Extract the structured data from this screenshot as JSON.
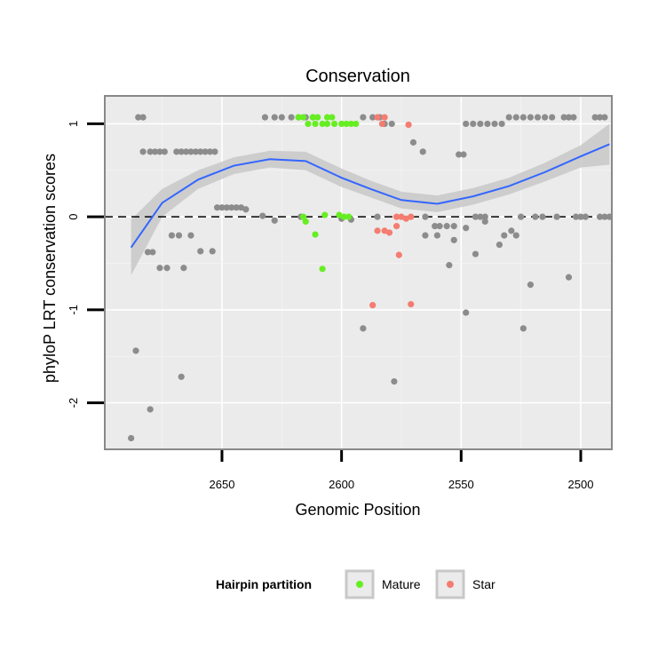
{
  "chart_data": {
    "type": "scatter",
    "title": "Conservation",
    "xlabel": "Genomic Position",
    "ylabel": "phyloP LRT conservation scores",
    "xlim": [
      2699,
      2487
    ],
    "ylim": [
      -2.5,
      1.3
    ],
    "x_reversed": true,
    "xticks": [
      2650,
      2600,
      2550,
      2500
    ],
    "yticks": [
      1,
      0,
      -1,
      -2
    ],
    "grid": true,
    "hline": {
      "y": 0,
      "style": "dashed"
    },
    "legend": {
      "title": "Hairpin partition",
      "placement": "bottom",
      "entries": [
        {
          "label": "Mature",
          "color": "#66ee22"
        },
        {
          "label": "Star",
          "color": "#f47c70"
        }
      ]
    },
    "colors": {
      "other": "#8c8c8c",
      "smooth": "#3366ff",
      "ribbon": "#c8c8c8",
      "panel_border": "#888888"
    },
    "smooth": {
      "x": [
        2688,
        2675,
        2660,
        2645,
        2630,
        2615,
        2600,
        2588,
        2575,
        2560,
        2545,
        2530,
        2515,
        2500,
        2488
      ],
      "y": [
        -0.33,
        0.15,
        0.4,
        0.55,
        0.62,
        0.6,
        0.42,
        0.3,
        0.18,
        0.14,
        0.22,
        0.33,
        0.48,
        0.65,
        0.78
      ],
      "se": [
        0.3,
        0.15,
        0.1,
        0.09,
        0.09,
        0.1,
        0.1,
        0.09,
        0.09,
        0.09,
        0.09,
        0.09,
        0.1,
        0.12,
        0.22
      ]
    },
    "series": [
      {
        "name": "Other",
        "points": [
          [
            2685,
            1.07
          ],
          [
            2683,
            1.07
          ],
          [
            2683,
            0.7
          ],
          [
            2680,
            0.7
          ],
          [
            2678,
            0.7
          ],
          [
            2676,
            0.7
          ],
          [
            2674,
            0.7
          ],
          [
            2669,
            0.7
          ],
          [
            2667,
            0.7
          ],
          [
            2665,
            0.7
          ],
          [
            2663,
            0.7
          ],
          [
            2661,
            0.7
          ],
          [
            2659,
            0.7
          ],
          [
            2657,
            0.7
          ],
          [
            2655,
            0.7
          ],
          [
            2653,
            0.7
          ],
          [
            2652,
            0.1
          ],
          [
            2650,
            0.1
          ],
          [
            2648,
            0.1
          ],
          [
            2646,
            0.1
          ],
          [
            2644,
            0.1
          ],
          [
            2642,
            0.1
          ],
          [
            2640,
            0.08
          ],
          [
            2633,
            0.01
          ],
          [
            2628,
            -0.04
          ],
          [
            2617,
            0.0
          ],
          [
            2632,
            1.07
          ],
          [
            2628,
            1.07
          ],
          [
            2625,
            1.07
          ],
          [
            2621,
            1.07
          ],
          [
            2618,
            1.07
          ],
          [
            2615,
            1.07
          ],
          [
            2612,
            1.07
          ],
          [
            2591,
            1.07
          ],
          [
            2587,
            1.07
          ],
          [
            2584,
            1.07
          ],
          [
            2582,
            1.0
          ],
          [
            2579,
            1.0
          ],
          [
            2570,
            0.8
          ],
          [
            2566,
            0.7
          ],
          [
            2565,
            0.0
          ],
          [
            2561,
            -0.1
          ],
          [
            2559,
            -0.1
          ],
          [
            2556,
            -0.1
          ],
          [
            2553,
            -0.1
          ],
          [
            2551,
            0.67
          ],
          [
            2549,
            0.67
          ],
          [
            2548,
            -0.12
          ],
          [
            2553,
            -0.25
          ],
          [
            2555,
            -0.52
          ],
          [
            2548,
            -1.03
          ],
          [
            2544,
            0.0
          ],
          [
            2542,
            0.0
          ],
          [
            2540,
            0.0
          ],
          [
            2544,
            -0.4
          ],
          [
            2540,
            -0.05
          ],
          [
            2548,
            1.0
          ],
          [
            2545,
            1.0
          ],
          [
            2542,
            1.0
          ],
          [
            2539,
            1.0
          ],
          [
            2536,
            1.0
          ],
          [
            2533,
            1.0
          ],
          [
            2530,
            1.07
          ],
          [
            2527,
            1.07
          ],
          [
            2524,
            1.07
          ],
          [
            2521,
            1.07
          ],
          [
            2518,
            1.07
          ],
          [
            2515,
            1.07
          ],
          [
            2512,
            1.07
          ],
          [
            2507,
            1.07
          ],
          [
            2505,
            1.07
          ],
          [
            2503,
            1.07
          ],
          [
            2494,
            1.07
          ],
          [
            2492,
            1.07
          ],
          [
            2490,
            1.07
          ],
          [
            2532,
            -0.2
          ],
          [
            2529,
            -0.15
          ],
          [
            2524,
            -1.2
          ],
          [
            2521,
            -0.73
          ],
          [
            2505,
            -0.65
          ],
          [
            2510,
            0.0
          ],
          [
            2516,
            0.0
          ],
          [
            2519,
            0.0
          ],
          [
            2525,
            0.0
          ],
          [
            2527,
            -0.2
          ],
          [
            2534,
            -0.3
          ],
          [
            2502,
            0.0
          ],
          [
            2500,
            0.0
          ],
          [
            2498,
            0.0
          ],
          [
            2492,
            0.0
          ],
          [
            2490,
            0.0
          ],
          [
            2488,
            0.0
          ],
          [
            2585,
            0.0
          ],
          [
            2600,
            -0.02
          ],
          [
            2591,
            -1.2
          ],
          [
            2578,
            -1.77
          ],
          [
            2565,
            -0.2
          ],
          [
            2560,
            -0.2
          ],
          [
            2688,
            -2.38
          ],
          [
            2686,
            -1.44
          ],
          [
            2680,
            -2.07
          ],
          [
            2667,
            -1.72
          ],
          [
            2681,
            -0.38
          ],
          [
            2679,
            -0.38
          ],
          [
            2676,
            -0.55
          ],
          [
            2673,
            -0.55
          ],
          [
            2671,
            -0.2
          ],
          [
            2668,
            -0.2
          ],
          [
            2663,
            -0.2
          ],
          [
            2666,
            -0.55
          ],
          [
            2659,
            -0.37
          ],
          [
            2654,
            -0.37
          ],
          [
            2596,
            -0.03
          ]
        ]
      },
      {
        "name": "Mature",
        "points": [
          [
            2618,
            1.07
          ],
          [
            2616,
            1.07
          ],
          [
            2612,
            1.07
          ],
          [
            2610,
            1.07
          ],
          [
            2606,
            1.07
          ],
          [
            2604,
            1.07
          ],
          [
            2614,
            1.0
          ],
          [
            2611,
            1.0
          ],
          [
            2608,
            1.0
          ],
          [
            2606,
            1.0
          ],
          [
            2603,
            1.0
          ],
          [
            2600,
            1.0
          ],
          [
            2598,
            1.0
          ],
          [
            2596,
            1.0
          ],
          [
            2594,
            1.0
          ],
          [
            2616,
            0.0
          ],
          [
            2615,
            -0.05
          ],
          [
            2611,
            -0.19
          ],
          [
            2608,
            -0.56
          ],
          [
            2607,
            0.02
          ],
          [
            2601,
            0.02
          ],
          [
            2599,
            0.0
          ],
          [
            2597,
            0.0
          ]
        ]
      },
      {
        "name": "Star",
        "points": [
          [
            2585,
            1.07
          ],
          [
            2582,
            1.07
          ],
          [
            2583,
            1.0
          ],
          [
            2572,
            0.99
          ],
          [
            2577,
            0.0
          ],
          [
            2575,
            0.0
          ],
          [
            2573,
            -0.02
          ],
          [
            2571,
            0.0
          ],
          [
            2585,
            -0.15
          ],
          [
            2582,
            -0.15
          ],
          [
            2580,
            -0.17
          ],
          [
            2577,
            -0.1
          ],
          [
            2576,
            -0.41
          ],
          [
            2587,
            -0.95
          ],
          [
            2571,
            -0.94
          ]
        ]
      }
    ]
  }
}
